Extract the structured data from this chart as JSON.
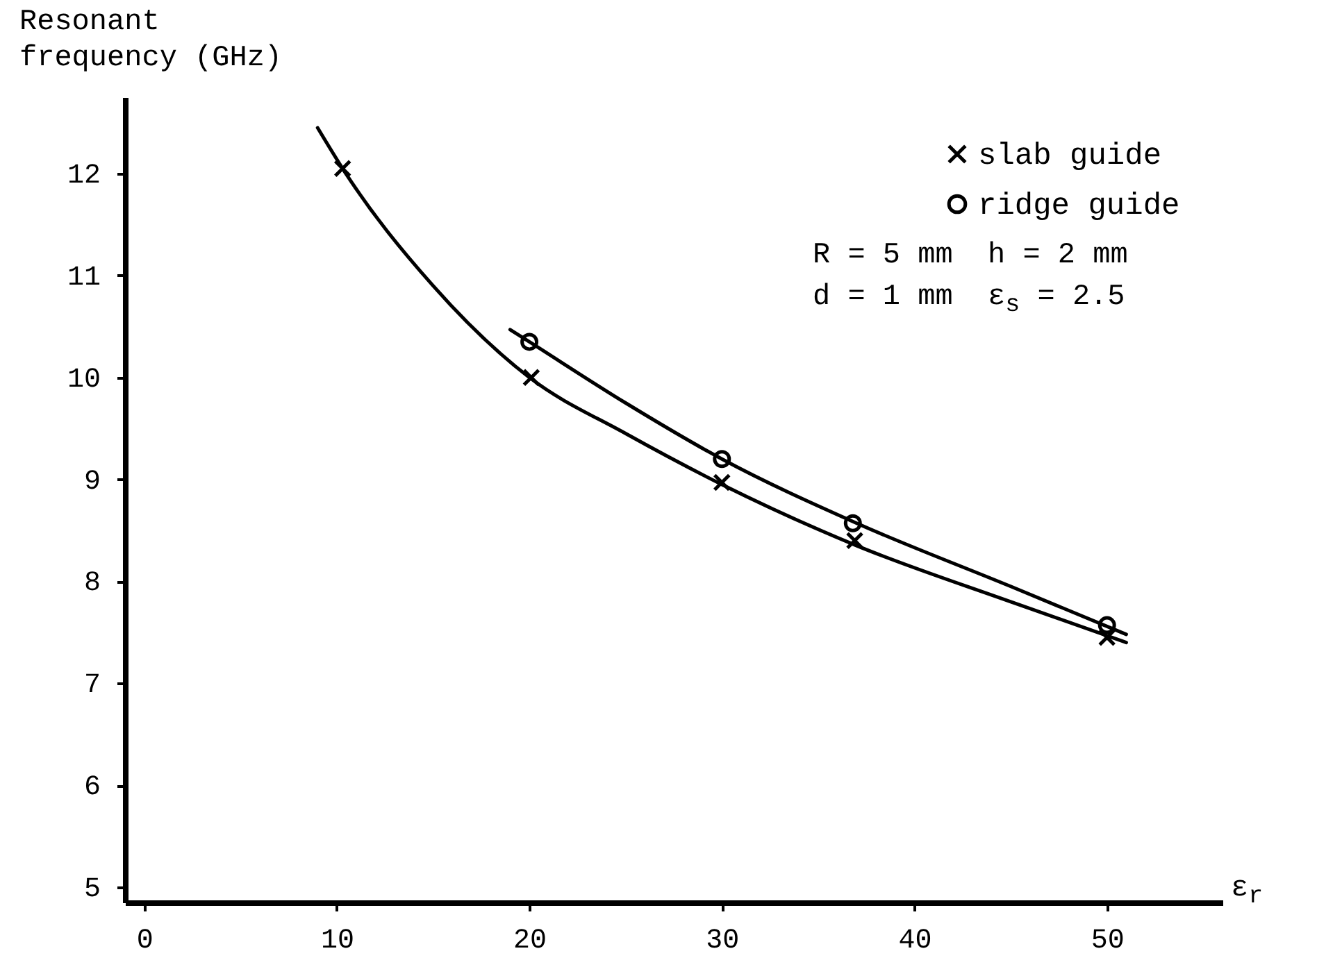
{
  "chart_data": {
    "type": "scatter",
    "xlabel": "ε$_{r}$",
    "ylabel": "Resonant frequency (GHz)",
    "xlim": [
      -1,
      56
    ],
    "ylim": [
      4.85,
      12.75
    ],
    "xticks": [
      0,
      10,
      20,
      30,
      40,
      50
    ],
    "yticks": [
      5,
      6,
      7,
      8,
      9,
      10,
      11,
      12
    ],
    "grid": false,
    "legend": "top right",
    "line_style": "solid",
    "annotations": [
      "R = 5 mm  h = 2 mm",
      "d = 1 mm  ε$_{s}$ = 2.5"
    ],
    "series": [
      {
        "type": "line",
        "color": "#000000",
        "marker": "none",
        "x": [
          9,
          10.3,
          15,
          20,
          25,
          30,
          37,
          45,
          51
        ],
        "values": [
          12.45,
          12.05,
          10.9,
          10.0,
          9.45,
          8.95,
          8.35,
          7.8,
          7.4
        ]
      },
      {
        "type": "line",
        "color": "#000000",
        "marker": "none",
        "x": [
          19,
          20,
          25,
          30,
          37,
          45,
          51
        ],
        "values": [
          10.47,
          10.35,
          9.75,
          9.2,
          8.57,
          7.95,
          7.48
        ]
      },
      {
        "name": "slab guide",
        "color": "#000000",
        "marker": "cross",
        "x": [
          10.3,
          20.1,
          30,
          36.9,
          50
        ],
        "values": [
          12.05,
          10.0,
          8.97,
          8.4,
          7.45
        ]
      },
      {
        "name": "ridge guide",
        "color": "#000000",
        "marker": "circle",
        "x": [
          20,
          30,
          36.8,
          50
        ],
        "values": [
          10.35,
          9.2,
          8.57,
          7.57
        ]
      }
    ]
  }
}
